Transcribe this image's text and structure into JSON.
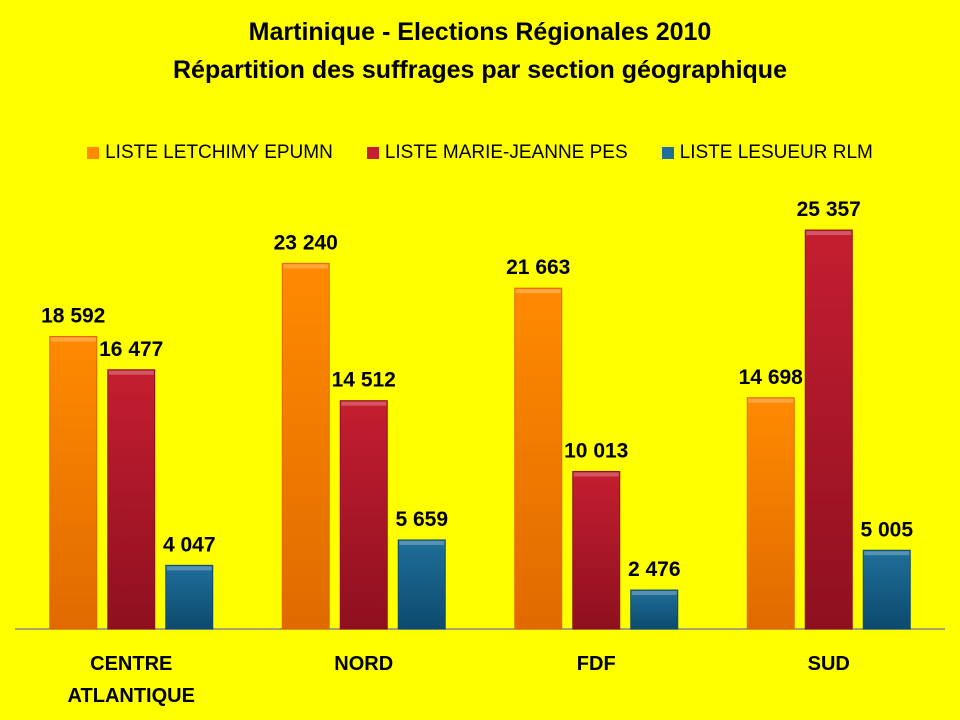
{
  "chart_data": {
    "type": "bar",
    "title": "Martinique - Elections Régionales 2010",
    "subtitle": "Répartition des suffrages par section géographique",
    "categories": [
      "CENTRE ATLANTIQUE",
      "NORD",
      "FDF",
      "SUD"
    ],
    "category_lines": [
      [
        "CENTRE",
        "ATLANTIQUE"
      ],
      [
        "NORD"
      ],
      [
        "FDF"
      ],
      [
        "SUD"
      ]
    ],
    "series": [
      {
        "name": "LISTE LETCHIMY EPUMN",
        "color": "#ff8a00",
        "dark": "#e06a00",
        "values": [
          18592,
          23240,
          21663,
          14698
        ],
        "labels": [
          "18 592",
          "23 240",
          "21 663",
          "14 698"
        ]
      },
      {
        "name": "LISTE MARIE-JEANNE PES",
        "color": "#c41e30",
        "dark": "#8e1020",
        "values": [
          16477,
          14512,
          10013,
          25357
        ],
        "labels": [
          "16 477",
          "14 512",
          "10 013",
          "25 357"
        ]
      },
      {
        "name": "LISTE LESUEUR RLM",
        "color": "#1f6f9a",
        "dark": "#0d4a6e",
        "values": [
          4047,
          5659,
          2476,
          5005
        ],
        "labels": [
          "4 047",
          "5 659",
          "2 476",
          "5 005"
        ]
      }
    ],
    "xlabel": "",
    "ylabel": "",
    "ylim": [
      0,
      30000
    ],
    "grid": false,
    "legend": "top"
  }
}
